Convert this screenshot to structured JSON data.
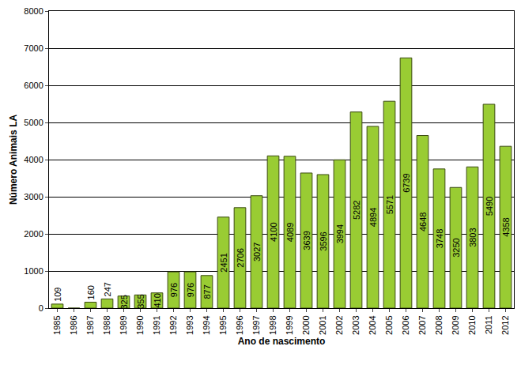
{
  "chart_data": {
    "type": "bar",
    "xlabel": "Ano de nascimento",
    "ylabel": "Número Animais LA",
    "categories": [
      "1985",
      "1986",
      "1987",
      "1988",
      "1989",
      "1990",
      "1991",
      "1992",
      "1993",
      "1994",
      "1995",
      "1996",
      "1997",
      "1998",
      "1999",
      "2000",
      "2001",
      "2002",
      "2003",
      "2004",
      "2005",
      "2006",
      "2007",
      "2008",
      "2009",
      "2010",
      "2011",
      "2012"
    ],
    "values": [
      109,
      0,
      160,
      247,
      325,
      355,
      410,
      976,
      976,
      877,
      2451,
      2706,
      3027,
      4100,
      4089,
      3639,
      3596,
      3994,
      5282,
      4894,
      5571,
      6739,
      4648,
      3748,
      3250,
      3803,
      5490,
      4358
    ],
    "color": "#99cc33",
    "ylim": [
      0,
      8000
    ],
    "yticks": [
      0,
      1000,
      2000,
      3000,
      4000,
      5000,
      6000,
      7000,
      8000
    ],
    "grid": true,
    "data_labels": true
  }
}
